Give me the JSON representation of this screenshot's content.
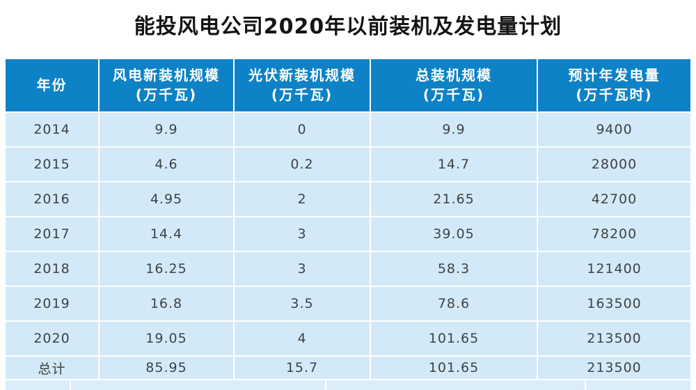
{
  "page": {
    "title": "能投风电公司2020年以前装机及发电量计划"
  },
  "colors": {
    "header_bg": "#0d82c6",
    "header_text": "#ffffff",
    "row_bg": "#d3e9f7",
    "cell_text": "#3e4244",
    "title_text": "#141414",
    "separator": "#ffffff",
    "partial_bottom_row_bg": "#dcedfa"
  },
  "table": {
    "headers": [
      {
        "main": "年份",
        "sub": ""
      },
      {
        "main": "风电新装机规模",
        "sub": "(万千瓦)"
      },
      {
        "main": "光伏新装机规模",
        "sub": "(万千瓦)"
      },
      {
        "main": "总装机规模",
        "sub": "(万千瓦)"
      },
      {
        "main": "预计年发电量",
        "sub": "(万千瓦时)"
      }
    ]
  },
  "chart_data": {
    "type": "table",
    "title": "能投风电公司2020年以前装机及发电量计划",
    "columns": [
      "年份",
      "风电新装机规模(万千瓦)",
      "光伏新装机规模(万千瓦)",
      "总装机规模(万千瓦)",
      "预计年发电量(万千瓦时)"
    ],
    "rows": [
      [
        "2014",
        "9.9",
        "0",
        "9.9",
        "9400"
      ],
      [
        "2015",
        "4.6",
        "0.2",
        "14.7",
        "28000"
      ],
      [
        "2016",
        "4.95",
        "2",
        "21.65",
        "42700"
      ],
      [
        "2017",
        "14.4",
        "3",
        "39.05",
        "78200"
      ],
      [
        "2018",
        "16.25",
        "3",
        "58.3",
        "121400"
      ],
      [
        "2019",
        "16.8",
        "3.5",
        "78.6",
        "163500"
      ],
      [
        "2020",
        "19.05",
        "4",
        "101.65",
        "213500"
      ],
      [
        "总计",
        "85.95",
        "15.7",
        "101.65",
        "213500"
      ]
    ]
  }
}
